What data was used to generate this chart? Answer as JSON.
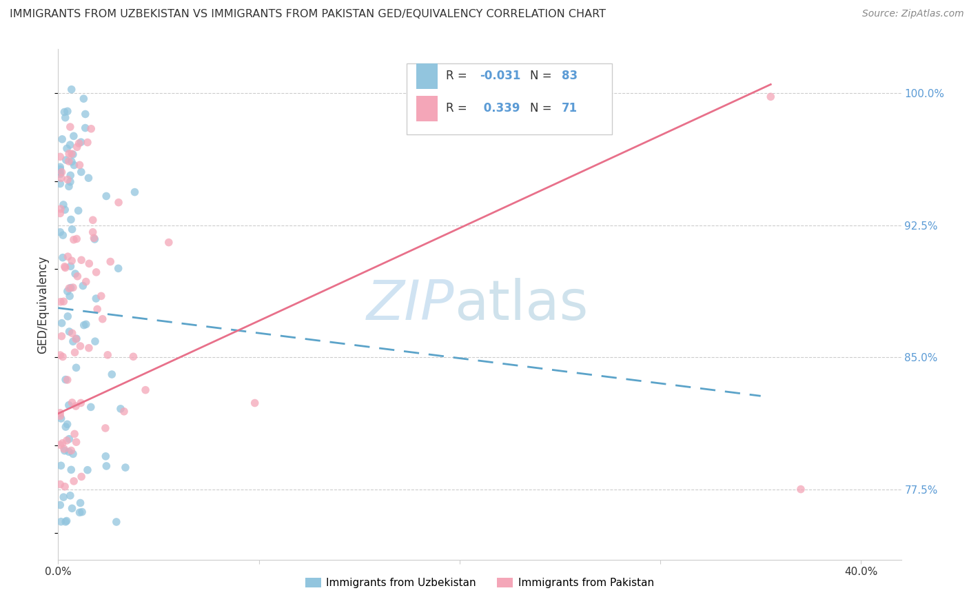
{
  "title": "IMMIGRANTS FROM UZBEKISTAN VS IMMIGRANTS FROM PAKISTAN GED/EQUIVALENCY CORRELATION CHART",
  "source": "Source: ZipAtlas.com",
  "ylabel": "GED/Equivalency",
  "yticks": [
    "77.5%",
    "85.0%",
    "92.5%",
    "100.0%"
  ],
  "ytick_values": [
    0.775,
    0.85,
    0.925,
    1.0
  ],
  "xlim": [
    0.0,
    0.42
  ],
  "ylim": [
    0.735,
    1.025
  ],
  "color_blue": "#92c5de",
  "color_pink": "#f4a6b8",
  "color_blue_line": "#5ba3c9",
  "color_pink_line": "#e8708a",
  "blue_trend_x0": 0.0,
  "blue_trend_y0": 0.878,
  "blue_trend_x1": 0.35,
  "blue_trend_y1": 0.828,
  "pink_trend_x0": 0.0,
  "pink_trend_y0": 0.818,
  "pink_trend_x1": 0.355,
  "pink_trend_y1": 1.005,
  "watermark_zip": "ZIP",
  "watermark_atlas": "atlas"
}
